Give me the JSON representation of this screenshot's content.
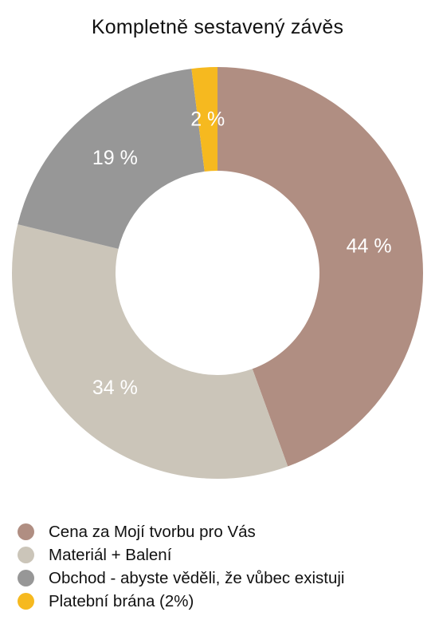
{
  "chart_data": {
    "type": "pie",
    "title": "Kompletně sestavený závěs",
    "categories": [
      "Cena za Mojí tvorbu pro Vás",
      "Materiál + Balení",
      "Obchod - abyste věděli, že vůbec existuji",
      "Platební brána (2%)"
    ],
    "values": [
      44,
      34,
      19,
      2
    ],
    "value_labels": [
      "44 %",
      "34 %",
      "19 %",
      "2 %"
    ],
    "colors": [
      "#b08e82",
      "#cbc5b9",
      "#979797",
      "#f6b91f"
    ],
    "donut": true,
    "legend_position": "bottom-left",
    "start": "top",
    "direction": "clockwise"
  }
}
